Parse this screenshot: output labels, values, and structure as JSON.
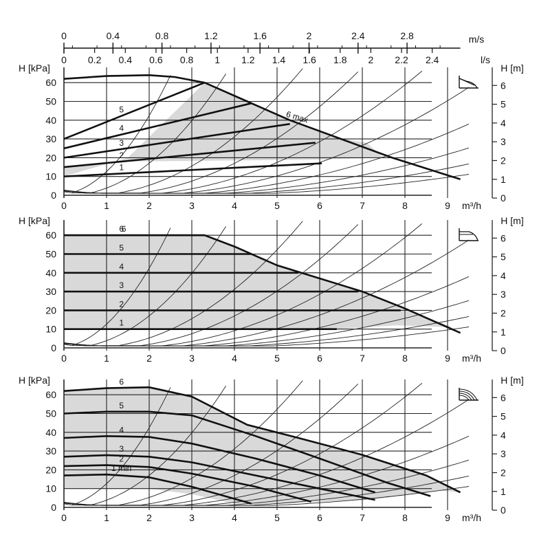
{
  "chart_data": [
    {
      "type": "line",
      "panel": "constant curve (CC)",
      "xlabel": "m³/h",
      "ylabel_left": "H [kPa]",
      "ylabel_right": "H [m]",
      "xlim": [
        0,
        10
      ],
      "ylim": [
        0,
        65
      ],
      "x_ticks": [
        "0",
        "1",
        "2",
        "3",
        "4",
        "5",
        "6",
        "7",
        "8",
        "9"
      ],
      "y_ticks_left": [
        "0",
        "10",
        "20",
        "30",
        "40",
        "50",
        "60"
      ],
      "y_ticks_right": [
        "0",
        "1",
        "2",
        "3",
        "4",
        "5",
        "6"
      ],
      "top_axis_ms": {
        "label": "m/s",
        "ticks": [
          {
            "v": "0",
            "x": 0
          },
          {
            "v": "0.4",
            "x": 1.15
          },
          {
            "v": "0.8",
            "x": 2.3
          },
          {
            "v": "1.2",
            "x": 3.45
          },
          {
            "v": "1.6",
            "x": 4.6
          },
          {
            "v": "2",
            "x": 5.75
          },
          {
            "v": "2.4",
            "x": 6.9
          },
          {
            "v": "2.8",
            "x": 8.05
          }
        ]
      },
      "top_axis_ls": {
        "label": "l/s",
        "ticks": [
          {
            "v": "0",
            "x": 0
          },
          {
            "v": "0.2",
            "x": 0.72
          },
          {
            "v": "0.4",
            "x": 1.44
          },
          {
            "v": "0.6",
            "x": 2.16
          },
          {
            "v": "0.8",
            "x": 2.88
          },
          {
            "v": "1",
            "x": 3.6
          },
          {
            "v": "1.2",
            "x": 4.32
          },
          {
            "v": "1.4",
            "x": 5.04
          },
          {
            "v": "1.6",
            "x": 5.76
          },
          {
            "v": "1.8",
            "x": 6.48
          },
          {
            "v": "2",
            "x": 7.2
          },
          {
            "v": "2.2",
            "x": 7.92
          },
          {
            "v": "2.4",
            "x": 8.64
          }
        ]
      },
      "max_curve": {
        "name": "6 max",
        "points": [
          [
            0,
            62
          ],
          [
            1,
            63.5
          ],
          [
            2,
            64
          ],
          [
            2.6,
            63
          ],
          [
            3.3,
            60
          ],
          [
            4.3,
            50
          ],
          [
            5.3,
            40
          ],
          [
            6.5,
            30
          ],
          [
            7.7,
            20
          ],
          [
            9.3,
            8.5
          ]
        ]
      },
      "series": [
        {
          "name": "1",
          "points": [
            [
              0,
              10
            ],
            [
              6.05,
              17
            ]
          ]
        },
        {
          "name": "2",
          "points": [
            [
              0,
              15
            ],
            [
              5.9,
              28
            ]
          ]
        },
        {
          "name": "3",
          "points": [
            [
              0,
              20
            ],
            [
              5.3,
              38
            ]
          ]
        },
        {
          "name": "4",
          "points": [
            [
              0,
              25
            ],
            [
              4.4,
              49
            ]
          ]
        },
        {
          "name": "5",
          "points": [
            [
              0,
              30
            ],
            [
              3.3,
              60
            ]
          ]
        }
      ],
      "shaded_region": [
        [
          0,
          10
        ],
        [
          1.5,
          20
        ],
        [
          3.3,
          60
        ],
        [
          4.3,
          50
        ],
        [
          5.3,
          40
        ],
        [
          6.3,
          31
        ],
        [
          7.1,
          28
        ],
        [
          7.5,
          20
        ],
        [
          6.0,
          19
        ],
        [
          1.6,
          18
        ],
        [
          0,
          15
        ]
      ]
    },
    {
      "type": "line",
      "panel": "constant pressure (CP)",
      "xlabel": "m³/h",
      "ylabel_left": "H [kPa]",
      "ylabel_right": "H [m]",
      "xlim": [
        0,
        10
      ],
      "ylim": [
        0,
        65
      ],
      "x_ticks": [
        "0",
        "1",
        "2",
        "3",
        "4",
        "5",
        "6",
        "7",
        "8",
        "9"
      ],
      "y_ticks_left": [
        "0",
        "10",
        "20",
        "30",
        "40",
        "50",
        "60"
      ],
      "y_ticks_right": [
        "0",
        "1",
        "2",
        "3",
        "4",
        "5",
        "6"
      ],
      "max_curve": {
        "name": "6",
        "points": [
          [
            0,
            60
          ],
          [
            3.3,
            60
          ],
          [
            4.0,
            54
          ],
          [
            5.0,
            44
          ],
          [
            6.0,
            37
          ],
          [
            7.0,
            30
          ],
          [
            8.0,
            21
          ],
          [
            9.3,
            8
          ]
        ]
      },
      "series": [
        {
          "name": "1",
          "points": [
            [
              0,
              10
            ],
            [
              6.4,
              10
            ]
          ]
        },
        {
          "name": "2",
          "points": [
            [
              0,
              20
            ],
            [
              7.9,
              20
            ]
          ]
        },
        {
          "name": "3",
          "points": [
            [
              0,
              30
            ],
            [
              6.9,
              30
            ]
          ]
        },
        {
          "name": "4",
          "points": [
            [
              0,
              40
            ],
            [
              5.5,
              40
            ]
          ]
        },
        {
          "name": "5",
          "points": [
            [
              0,
              50
            ],
            [
              4.4,
              50
            ]
          ]
        },
        {
          "name": "6",
          "points": [
            [
              0,
              60
            ],
            [
              3.3,
              60
            ]
          ]
        }
      ],
      "shaded_region": [
        [
          0,
          10
        ],
        [
          0,
          60
        ],
        [
          3.3,
          60
        ],
        [
          4.0,
          54
        ],
        [
          5.0,
          44
        ],
        [
          6.0,
          37
        ],
        [
          7.0,
          30
        ],
        [
          8.0,
          21
        ],
        [
          9.1,
          11
        ],
        [
          7.8,
          12
        ],
        [
          6.4,
          10
        ]
      ]
    },
    {
      "type": "line",
      "panel": "constant speed (I-II-III)",
      "xlabel": "m³/h",
      "ylabel_left": "H [kPa]",
      "ylabel_right": "H [m]",
      "xlim": [
        0,
        10
      ],
      "ylim": [
        0,
        65
      ],
      "x_ticks": [
        "0",
        "1",
        "2",
        "3",
        "4",
        "5",
        "6",
        "7",
        "8",
        "9"
      ],
      "y_ticks_left": [
        "0",
        "10",
        "20",
        "30",
        "40",
        "50",
        "60"
      ],
      "y_ticks_right": [
        "0",
        "1",
        "2",
        "3",
        "4",
        "5",
        "6"
      ],
      "series": [
        {
          "name": "1 min",
          "points": [
            [
              0,
              17
            ],
            [
              1,
              17.5
            ],
            [
              2,
              16
            ],
            [
              3,
              11
            ],
            [
              4.4,
              2
            ]
          ]
        },
        {
          "name": "2",
          "points": [
            [
              0,
              22
            ],
            [
              1,
              22.5
            ],
            [
              2,
              21.5
            ],
            [
              3,
              18
            ],
            [
              4.5,
              11
            ],
            [
              5.8,
              3
            ]
          ]
        },
        {
          "name": "3",
          "points": [
            [
              0,
              27
            ],
            [
              1,
              27.8
            ],
            [
              2,
              27
            ],
            [
              3,
              24
            ],
            [
              4.5,
              17
            ],
            [
              6,
              10
            ],
            [
              7.3,
              4
            ]
          ]
        },
        {
          "name": "4",
          "points": [
            [
              0,
              37
            ],
            [
              1,
              38
            ],
            [
              2,
              37.5
            ],
            [
              3,
              34
            ],
            [
              4.5,
              26
            ],
            [
              6,
              17
            ],
            [
              7.3,
              8
            ]
          ]
        },
        {
          "name": "5",
          "points": [
            [
              0,
              50
            ],
            [
              1,
              51
            ],
            [
              2,
              51
            ],
            [
              3,
              49
            ],
            [
              4.5,
              38
            ],
            [
              6,
              26
            ],
            [
              7.6,
              13
            ],
            [
              8.6,
              6
            ]
          ]
        },
        {
          "name": "6",
          "points": [
            [
              0,
              62
            ],
            [
              1,
              63.5
            ],
            [
              2,
              64
            ],
            [
              3,
              59
            ],
            [
              4.3,
              44
            ],
            [
              5.5,
              37
            ],
            [
              7,
              28
            ],
            [
              8.5,
              17
            ],
            [
              9.3,
              8
            ]
          ]
        }
      ],
      "shaded_region": [
        [
          0,
          10
        ],
        [
          0,
          62
        ],
        [
          1,
          63.5
        ],
        [
          2,
          64
        ],
        [
          3,
          59
        ],
        [
          4.3,
          44
        ],
        [
          5.5,
          37
        ],
        [
          7,
          28
        ],
        [
          8.5,
          17
        ],
        [
          9.3,
          8
        ],
        [
          8.8,
          9
        ],
        [
          7.2,
          4
        ],
        [
          5.0,
          2
        ],
        [
          4.3,
          1.5
        ],
        [
          4.0,
          2
        ],
        [
          3,
          7
        ],
        [
          2,
          10
        ]
      ]
    }
  ],
  "labels": {
    "x_unit": "m³/h",
    "y_left_unit": "H [kPa]",
    "y_right_unit": "H [m]",
    "top_ms_unit": "m/s",
    "top_ls_unit": "l/s",
    "max_label": "6 max"
  }
}
